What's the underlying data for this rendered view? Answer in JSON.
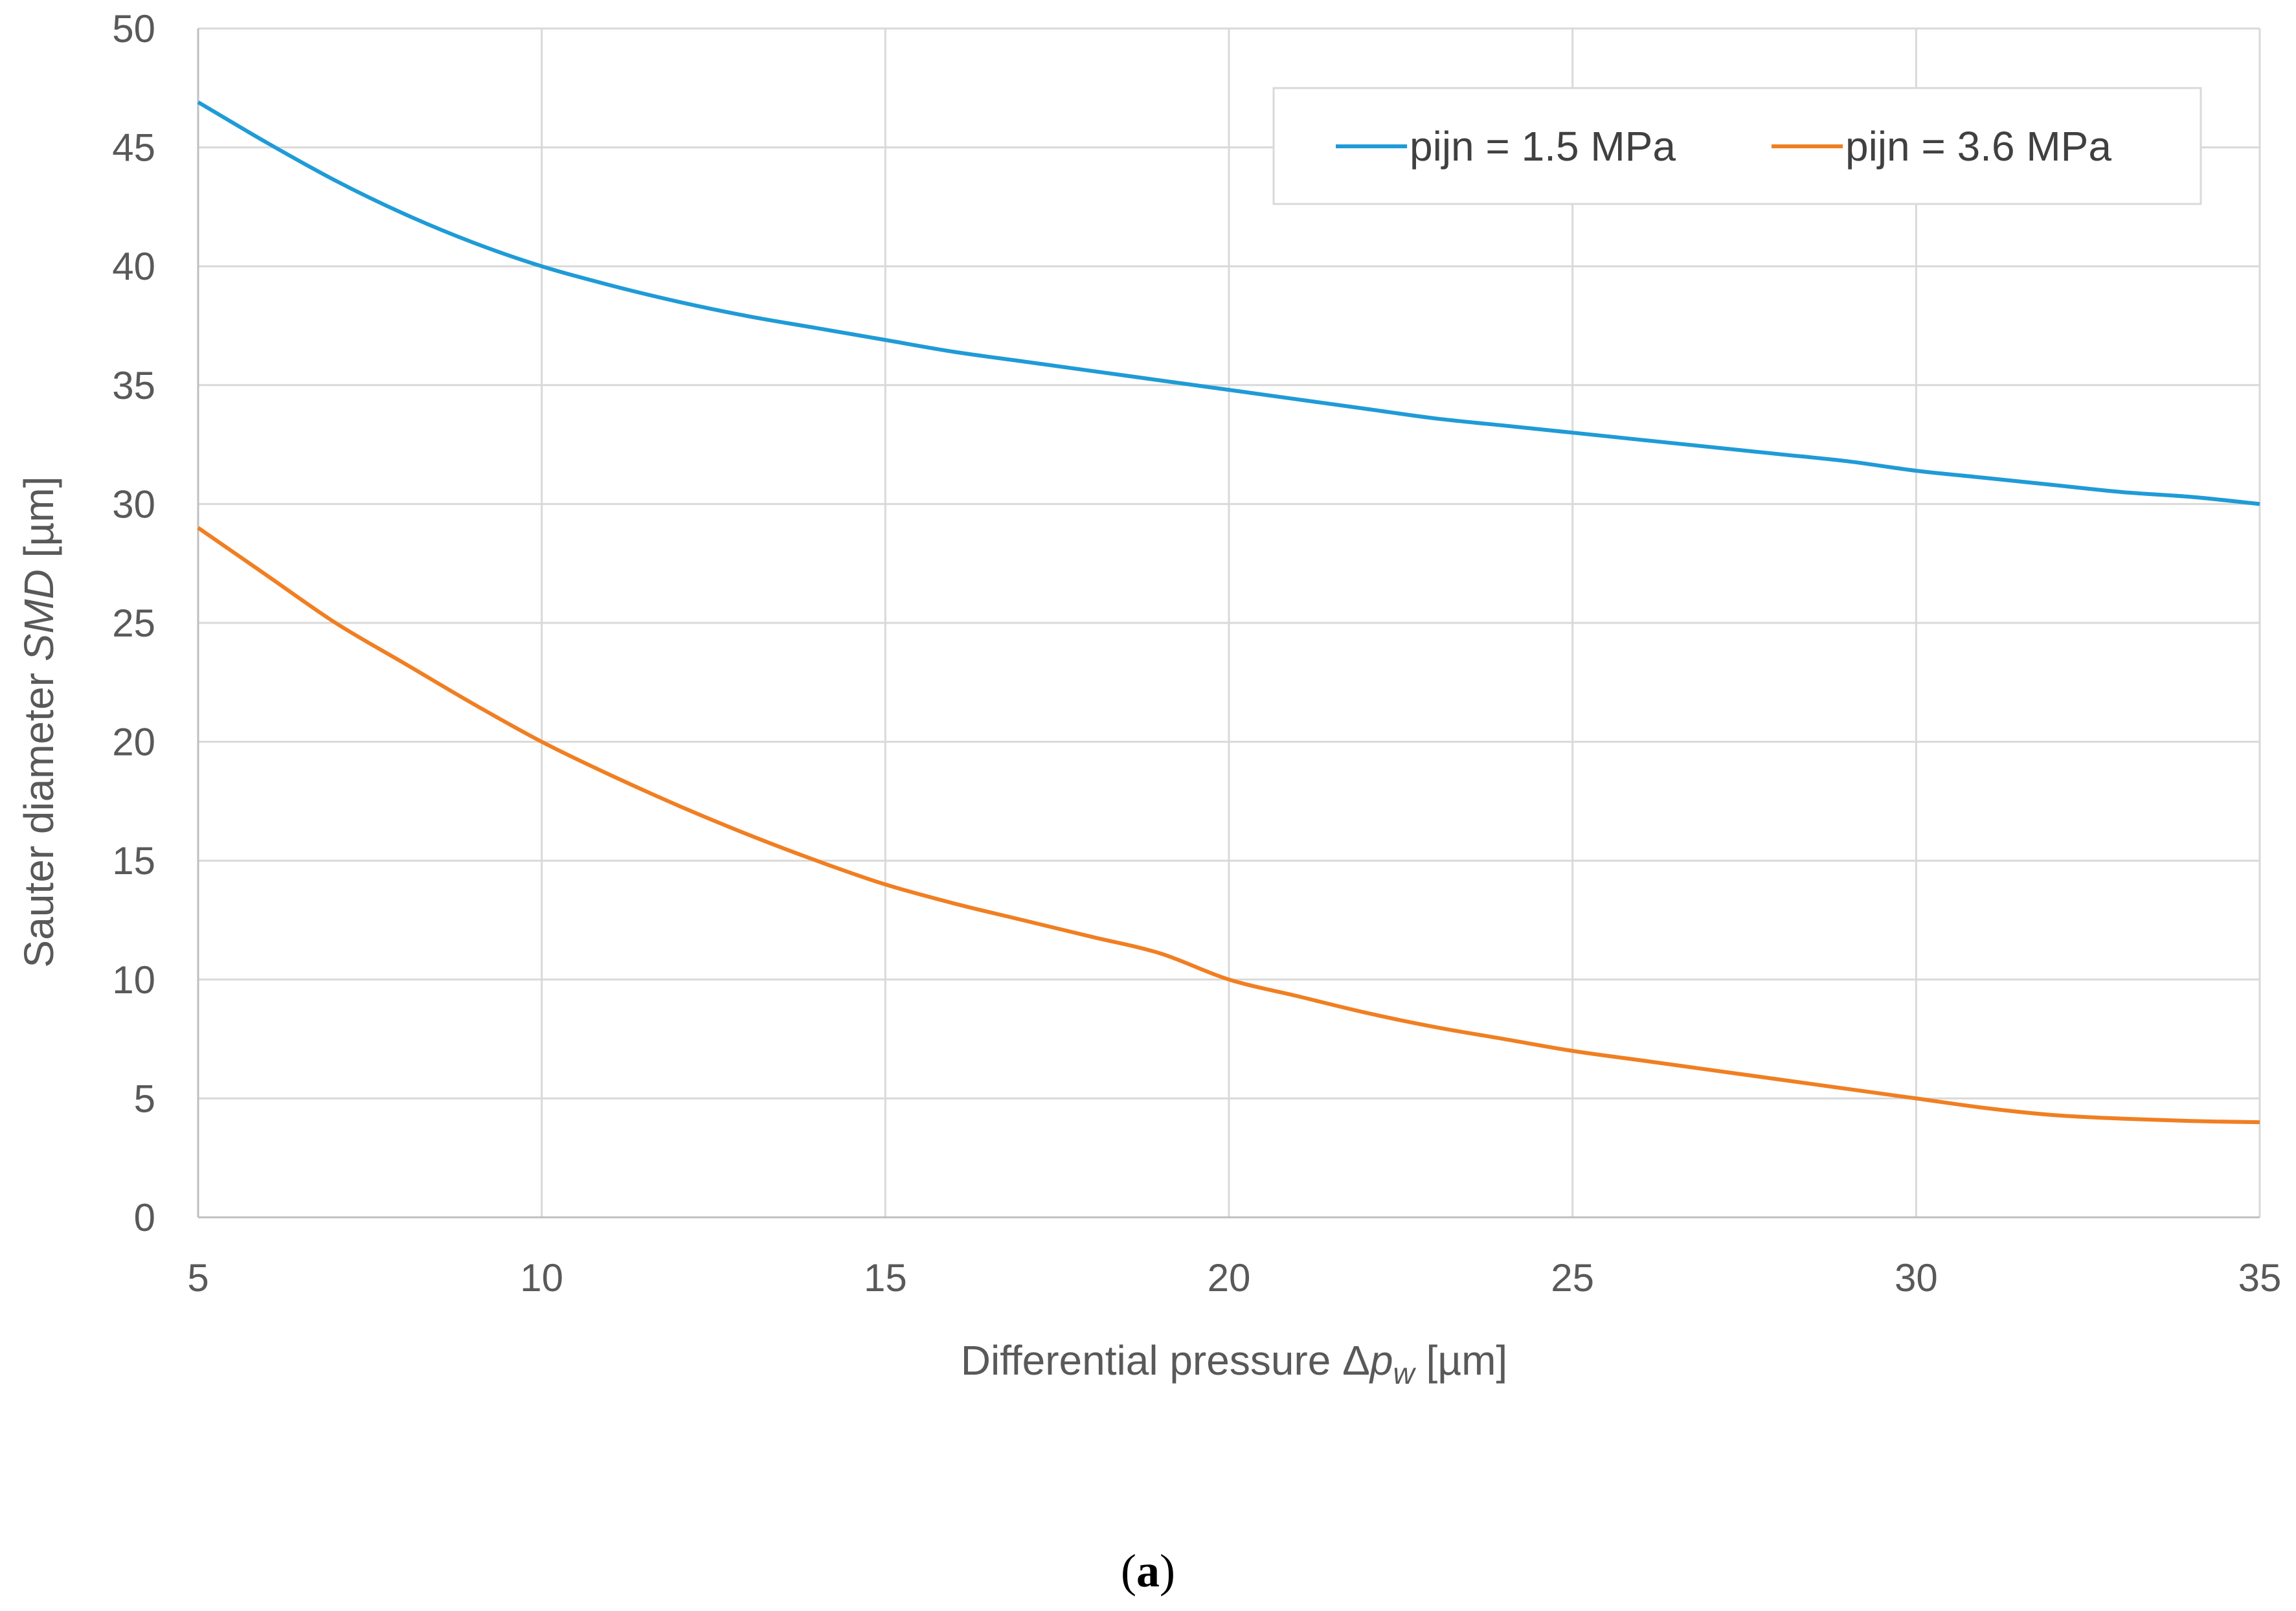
{
  "chart_data": {
    "type": "line",
    "title": "",
    "xlabel": {
      "prefix": "Differential pressure Δ",
      "var": "p",
      "sub": "w",
      "suffix": " [µm]"
    },
    "ylabel": {
      "prefix": "Sauter diameter ",
      "var": "SMD",
      "suffix": " [µm]"
    },
    "xlim": [
      5,
      35
    ],
    "ylim": [
      0,
      50
    ],
    "x_ticks": [
      5,
      10,
      15,
      20,
      25,
      30,
      35
    ],
    "y_ticks": [
      0,
      5,
      10,
      15,
      20,
      25,
      30,
      35,
      40,
      45,
      50
    ],
    "grid": true,
    "legend_position": "top-right",
    "x": [
      5,
      6,
      7,
      8,
      9,
      10,
      11,
      12,
      13,
      14,
      15,
      16,
      17,
      18,
      19,
      20,
      21,
      22,
      23,
      24,
      25,
      26,
      27,
      28,
      29,
      30,
      31,
      32,
      33,
      34,
      35
    ],
    "series": [
      {
        "name": "pijn = 1.5 MPa",
        "color": "#1f9bd7",
        "values": [
          46.9,
          45.2,
          43.6,
          42.2,
          41.0,
          40.0,
          39.2,
          38.5,
          37.9,
          37.4,
          36.9,
          36.4,
          36.0,
          35.6,
          35.2,
          34.8,
          34.4,
          34.0,
          33.6,
          33.3,
          33.0,
          32.7,
          32.4,
          32.1,
          31.8,
          31.4,
          31.1,
          30.8,
          30.5,
          30.3,
          30.0
        ]
      },
      {
        "name": "pijn = 3.6 MPa",
        "color": "#f07f22",
        "values": [
          29.0,
          27.0,
          25.0,
          23.3,
          21.6,
          20.0,
          18.6,
          17.3,
          16.1,
          15.0,
          14.0,
          13.2,
          12.5,
          11.8,
          11.1,
          10.0,
          9.3,
          8.6,
          8.0,
          7.5,
          7.0,
          6.6,
          6.2,
          5.8,
          5.4,
          5.0,
          4.6,
          4.3,
          4.15,
          4.05,
          4.0
        ]
      }
    ]
  },
  "caption": {
    "open": "(",
    "letter": "a",
    "close": ")"
  }
}
